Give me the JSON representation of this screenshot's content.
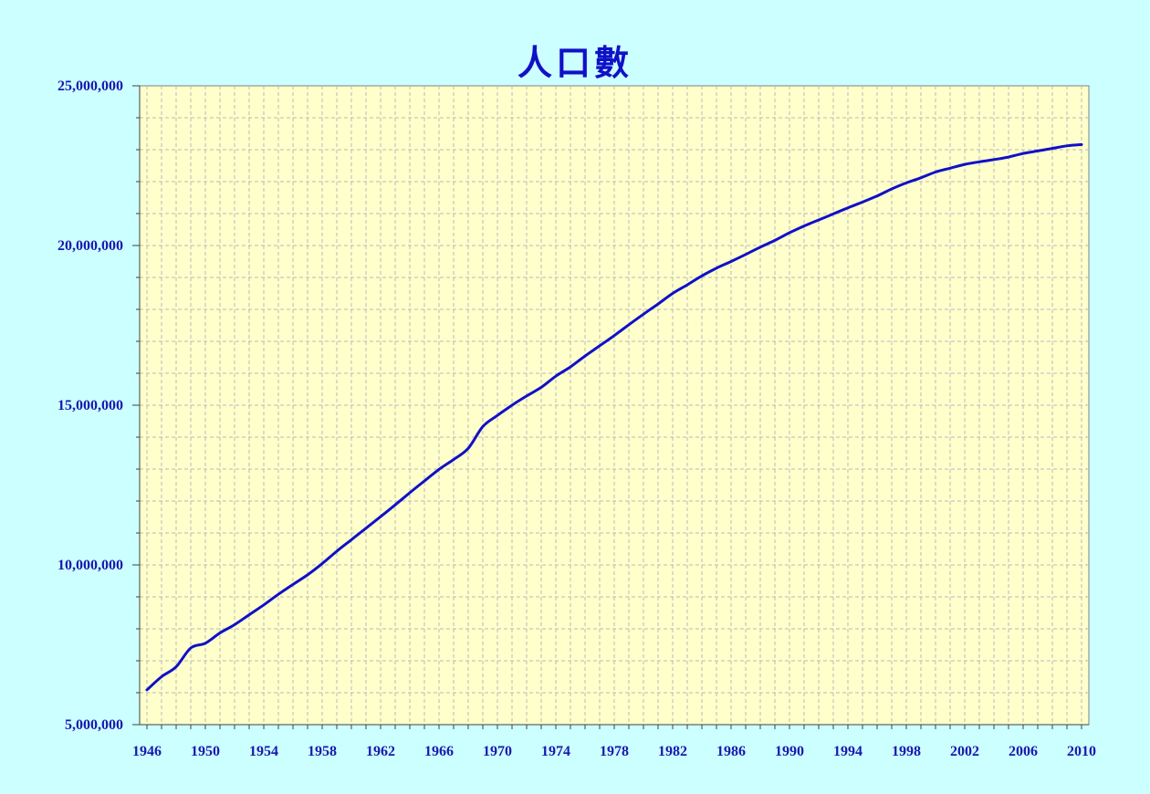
{
  "chart_data": {
    "type": "line",
    "title": "人口數",
    "xlabel": "",
    "ylabel": "",
    "xlim": [
      1945.5,
      2010.5
    ],
    "ylim": [
      5000000,
      25000000
    ],
    "grid": true,
    "background_color": "#ccffff",
    "plot_area_color": "#ffffcc",
    "line_color": "#1010c8",
    "text_color": "#1818b0",
    "x_ticks": [
      1946,
      1950,
      1954,
      1958,
      1962,
      1966,
      1970,
      1974,
      1978,
      1982,
      1986,
      1990,
      1994,
      1998,
      2002,
      2006,
      2010
    ],
    "y_ticks": [
      {
        "value": 5000000,
        "label": "5,000,000"
      },
      {
        "value": 10000000,
        "label": "10,000,000"
      },
      {
        "value": 15000000,
        "label": "15,000,000"
      },
      {
        "value": 20000000,
        "label": "20,000,000"
      },
      {
        "value": 25000000,
        "label": "25,000,000"
      }
    ],
    "x": [
      1946,
      1947,
      1948,
      1949,
      1950,
      1951,
      1952,
      1953,
      1954,
      1955,
      1956,
      1957,
      1958,
      1959,
      1960,
      1961,
      1962,
      1963,
      1964,
      1965,
      1966,
      1967,
      1968,
      1969,
      1970,
      1971,
      1972,
      1973,
      1974,
      1975,
      1976,
      1977,
      1978,
      1979,
      1980,
      1981,
      1982,
      1983,
      1984,
      1985,
      1986,
      1987,
      1988,
      1989,
      1990,
      1991,
      1992,
      1993,
      1994,
      1995,
      1996,
      1997,
      1998,
      1999,
      2000,
      2001,
      2002,
      2003,
      2004,
      2005,
      2006,
      2007,
      2008,
      2009,
      2010
    ],
    "values": [
      6090000,
      6500000,
      6810000,
      7400000,
      7550000,
      7870000,
      8130000,
      8440000,
      8750000,
      9080000,
      9390000,
      9690000,
      10040000,
      10430000,
      10790000,
      11150000,
      11510000,
      11880000,
      12260000,
      12630000,
      12990000,
      13300000,
      13650000,
      14330000,
      14680000,
      15000000,
      15290000,
      15560000,
      15910000,
      16200000,
      16540000,
      16860000,
      17180000,
      17520000,
      17850000,
      18170000,
      18500000,
      18770000,
      19050000,
      19290000,
      19500000,
      19720000,
      19950000,
      20160000,
      20400000,
      20610000,
      20800000,
      20990000,
      21180000,
      21360000,
      21550000,
      21770000,
      21960000,
      22120000,
      22300000,
      22420000,
      22540000,
      22620000,
      22690000,
      22770000,
      22880000,
      22960000,
      23040000,
      23120000,
      23160000
    ]
  }
}
